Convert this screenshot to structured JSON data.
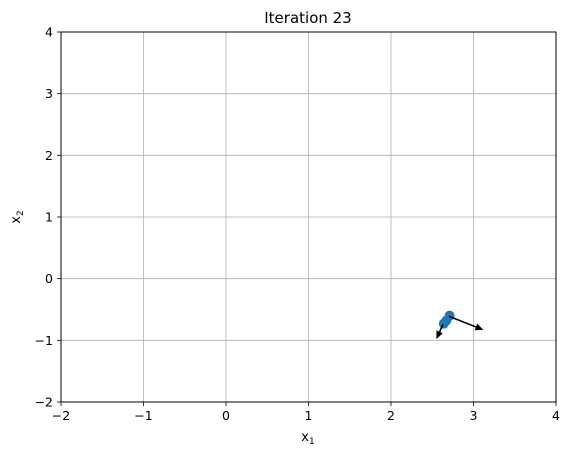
{
  "chart_data": {
    "type": "scatter",
    "title": "Iteration 23",
    "xlabel": {
      "base": "x",
      "sub": "1"
    },
    "ylabel": {
      "base": "x",
      "sub": "2"
    },
    "xlim": [
      -2,
      4
    ],
    "ylim": [
      -2,
      4
    ],
    "xticks": [
      -2,
      -1,
      0,
      1,
      2,
      3,
      4
    ],
    "yticks": [
      -2,
      -1,
      0,
      1,
      2,
      3,
      4
    ],
    "xtick_labels": [
      "−2",
      "−1",
      "0",
      "1",
      "2",
      "3",
      "4"
    ],
    "ytick_labels": [
      "−2",
      "−1",
      "0",
      "1",
      "2",
      "3",
      "4"
    ],
    "grid": true,
    "points": [
      {
        "x": 2.71,
        "y": -0.6
      },
      {
        "x": 2.67,
        "y": -0.68
      },
      {
        "x": 2.64,
        "y": -0.73
      }
    ],
    "arrows": [
      {
        "x": 2.7,
        "y": -0.61,
        "dx": 0.42,
        "dy": -0.22
      },
      {
        "x": 2.63,
        "y": -0.74,
        "dx": -0.08,
        "dy": -0.24
      }
    ],
    "colors": {
      "points": "#1f77b4",
      "arrows": "#000000",
      "grid": "#b0b0b0"
    }
  }
}
